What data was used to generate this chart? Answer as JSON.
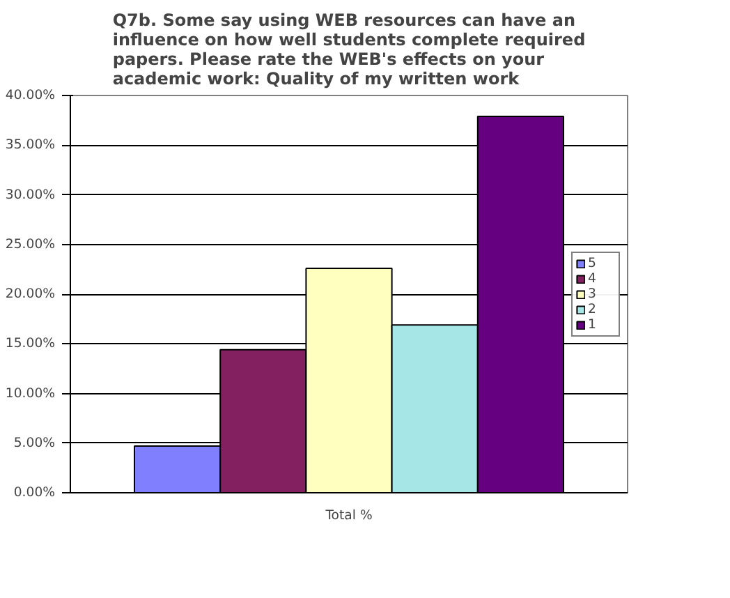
{
  "chart_data": {
    "type": "bar",
    "title": "Q7b.  Some say using WEB resources can have an influence on how well students complete required papers.  Please rate the WEB's effects on your academic work:  Quality of my written work",
    "categories": [
      "Total %"
    ],
    "series": [
      {
        "name": "5",
        "color": "#8080ff",
        "values": [
          4.7
        ]
      },
      {
        "name": "4",
        "color": "#832160",
        "values": [
          14.4
        ]
      },
      {
        "name": "3",
        "color": "#ffffc0",
        "values": [
          22.6
        ]
      },
      {
        "name": "2",
        "color": "#a6e6e6",
        "values": [
          16.9
        ]
      },
      {
        "name": "1",
        "color": "#650080",
        "values": [
          37.9
        ]
      }
    ],
    "ylim": [
      0,
      40
    ],
    "yticks": [
      {
        "value": 0,
        "label": "0.00%"
      },
      {
        "value": 5,
        "label": "5.00%"
      },
      {
        "value": 10,
        "label": "10.00%"
      },
      {
        "value": 15,
        "label": "15.00%"
      },
      {
        "value": 20,
        "label": "20.00%"
      },
      {
        "value": 25,
        "label": "25.00%"
      },
      {
        "value": 30,
        "label": "30.00%"
      },
      {
        "value": 35,
        "label": "35.00%"
      },
      {
        "value": 40,
        "label": "40.00%"
      }
    ],
    "grid": "y",
    "legend": "right"
  }
}
